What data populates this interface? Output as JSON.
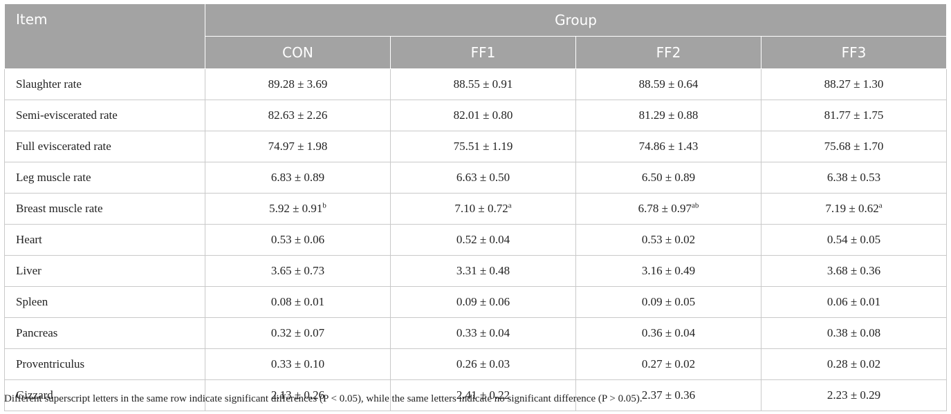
{
  "header": {
    "item_label": "Item",
    "group_label": "Group",
    "groups": [
      "CON",
      "FF1",
      "FF2",
      "FF3"
    ]
  },
  "rows": [
    {
      "item": "Slaughter rate",
      "values": [
        [
          "89.28 ± 3.69",
          ""
        ],
        [
          "88.55 ± 0.91",
          ""
        ],
        [
          "88.59 ± 0.64",
          ""
        ],
        [
          "88.27 ± 1.30",
          ""
        ]
      ]
    },
    {
      "item": "Semi-eviscerated rate",
      "values": [
        [
          "82.63 ± 2.26",
          ""
        ],
        [
          "82.01 ± 0.80",
          ""
        ],
        [
          "81.29 ± 0.88",
          ""
        ],
        [
          "81.77 ± 1.75",
          ""
        ]
      ]
    },
    {
      "item": "Full eviscerated rate",
      "values": [
        [
          "74.97 ± 1.98",
          ""
        ],
        [
          "75.51 ± 1.19",
          ""
        ],
        [
          "74.86 ± 1.43",
          ""
        ],
        [
          "75.68 ± 1.70",
          ""
        ]
      ]
    },
    {
      "item": "Leg muscle rate",
      "values": [
        [
          "6.83 ± 0.89",
          ""
        ],
        [
          "6.63 ± 0.50",
          ""
        ],
        [
          "6.50 ± 0.89",
          ""
        ],
        [
          "6.38 ± 0.53",
          ""
        ]
      ]
    },
    {
      "item": "Breast muscle rate",
      "values": [
        [
          "5.92 ± 0.91",
          "b"
        ],
        [
          "7.10 ± 0.72",
          "a"
        ],
        [
          "6.78 ± 0.97",
          "ab"
        ],
        [
          "7.19 ± 0.62",
          "a"
        ]
      ]
    },
    {
      "item": "Heart",
      "values": [
        [
          "0.53 ± 0.06",
          ""
        ],
        [
          "0.52 ± 0.04",
          ""
        ],
        [
          "0.53 ± 0.02",
          ""
        ],
        [
          "0.54 ± 0.05",
          ""
        ]
      ]
    },
    {
      "item": "Liver",
      "values": [
        [
          "3.65 ± 0.73",
          ""
        ],
        [
          "3.31 ± 0.48",
          ""
        ],
        [
          "3.16 ± 0.49",
          ""
        ],
        [
          "3.68 ± 0.36",
          ""
        ]
      ]
    },
    {
      "item": "Spleen",
      "values": [
        [
          "0.08 ± 0.01",
          ""
        ],
        [
          "0.09 ± 0.06",
          ""
        ],
        [
          "0.09 ± 0.05",
          ""
        ],
        [
          "0.06 ± 0.01",
          ""
        ]
      ]
    },
    {
      "item": "Pancreas",
      "values": [
        [
          "0.32 ± 0.07",
          ""
        ],
        [
          "0.33 ± 0.04",
          ""
        ],
        [
          "0.36 ± 0.04",
          ""
        ],
        [
          "0.38 ± 0.08",
          ""
        ]
      ]
    },
    {
      "item": "Proventriculus",
      "values": [
        [
          "0.33 ± 0.10",
          ""
        ],
        [
          "0.26 ± 0.03",
          ""
        ],
        [
          "0.27 ± 0.02",
          ""
        ],
        [
          "0.28 ± 0.02",
          ""
        ]
      ]
    },
    {
      "item": "Gizzard",
      "values": [
        [
          "2.13 ± 0.26",
          ""
        ],
        [
          "2.41 ± 0.22",
          ""
        ],
        [
          "2.37 ± 0.36",
          ""
        ],
        [
          "2.23 ± 0.29",
          ""
        ]
      ]
    }
  ],
  "footnote": "Different superscript letters in the same row indicate significant differences (P < 0.05), while the same letters indicate no significant difference (P > 0.05).",
  "colors": {
    "header_bg": "#a3a3a3",
    "header_text": "#ffffff",
    "grid": "#c9c9c9",
    "text": "#222222"
  }
}
